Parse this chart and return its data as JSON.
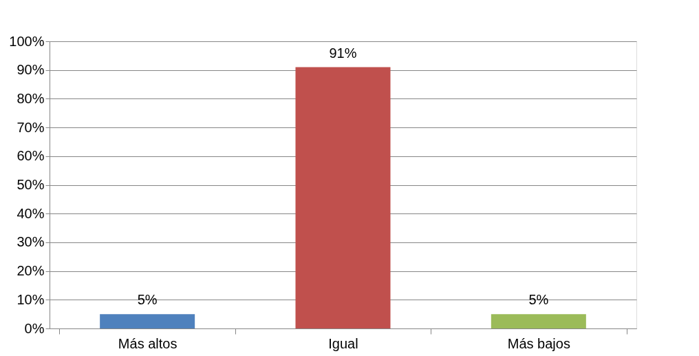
{
  "chart_data": {
    "type": "bar",
    "categories": [
      "Más altos",
      "Igual",
      "Más bajos"
    ],
    "values": [
      5,
      91,
      5
    ],
    "colors": [
      "#4f81bd",
      "#c0504d",
      "#9bbb59"
    ],
    "value_labels": [
      "5%",
      "91%",
      "5%"
    ],
    "ylim": [
      0,
      100
    ],
    "yticks": [
      {
        "value": 0,
        "label": "0%"
      },
      {
        "value": 10,
        "label": "10%"
      },
      {
        "value": 20,
        "label": "20%"
      },
      {
        "value": 30,
        "label": "30%"
      },
      {
        "value": 40,
        "label": "40%"
      },
      {
        "value": 50,
        "label": "50%"
      },
      {
        "value": 60,
        "label": "60%"
      },
      {
        "value": 70,
        "label": "70%"
      },
      {
        "value": 80,
        "label": "80%"
      },
      {
        "value": 90,
        "label": "90%"
      },
      {
        "value": 100,
        "label": "100%"
      }
    ],
    "grid": "y"
  }
}
